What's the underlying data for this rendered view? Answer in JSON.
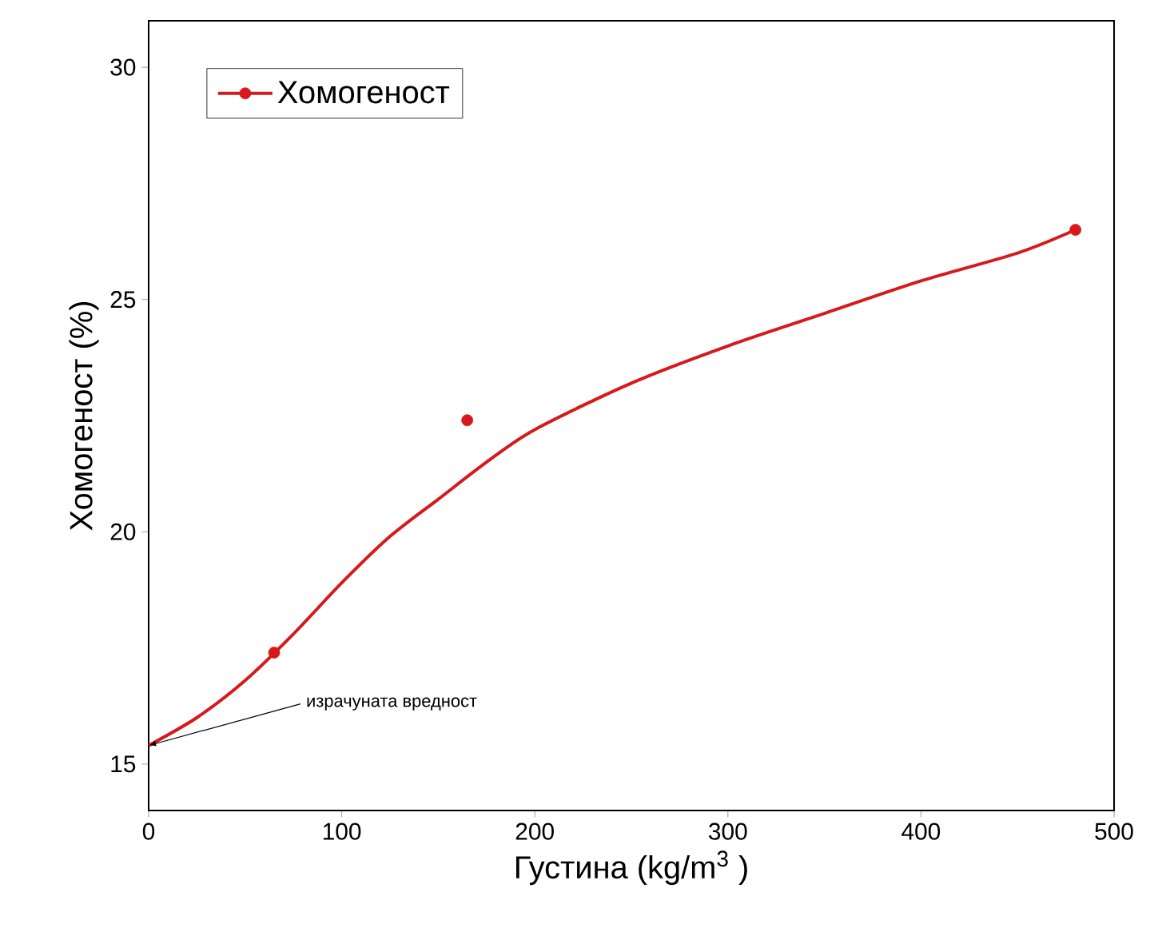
{
  "chart_data": {
    "type": "scatter",
    "xlabel": "Густина (kg/m$^{3}$ )",
    "ylabel": "Хомогеност (%)",
    "xlim": [
      0,
      500
    ],
    "ylim": [
      14,
      31
    ],
    "xticks": [
      0,
      100,
      200,
      300,
      400,
      500
    ],
    "yticks": [
      15,
      20,
      25,
      30
    ],
    "legend": "top left",
    "grid": false,
    "series": [
      {
        "name": "Хомогеност",
        "color": "#d7191c",
        "marker": "circle",
        "x": [
          65,
          165,
          480
        ],
        "values": [
          17.4,
          22.4,
          26.5
        ]
      },
      {
        "type": "line",
        "color": "#d7191c",
        "marker": "none",
        "x": [
          0,
          25,
          50,
          75,
          100,
          125,
          150,
          175,
          200,
          250,
          300,
          350,
          400,
          450,
          480
        ],
        "values": [
          15.4,
          16.0,
          16.8,
          17.8,
          18.9,
          19.9,
          20.7,
          21.5,
          22.2,
          23.2,
          24.0,
          24.7,
          25.4,
          26.0,
          26.5
        ]
      }
    ],
    "annotations": [
      {
        "text": "израчуната вредност",
        "x": 0,
        "y": 15.4
      }
    ]
  }
}
